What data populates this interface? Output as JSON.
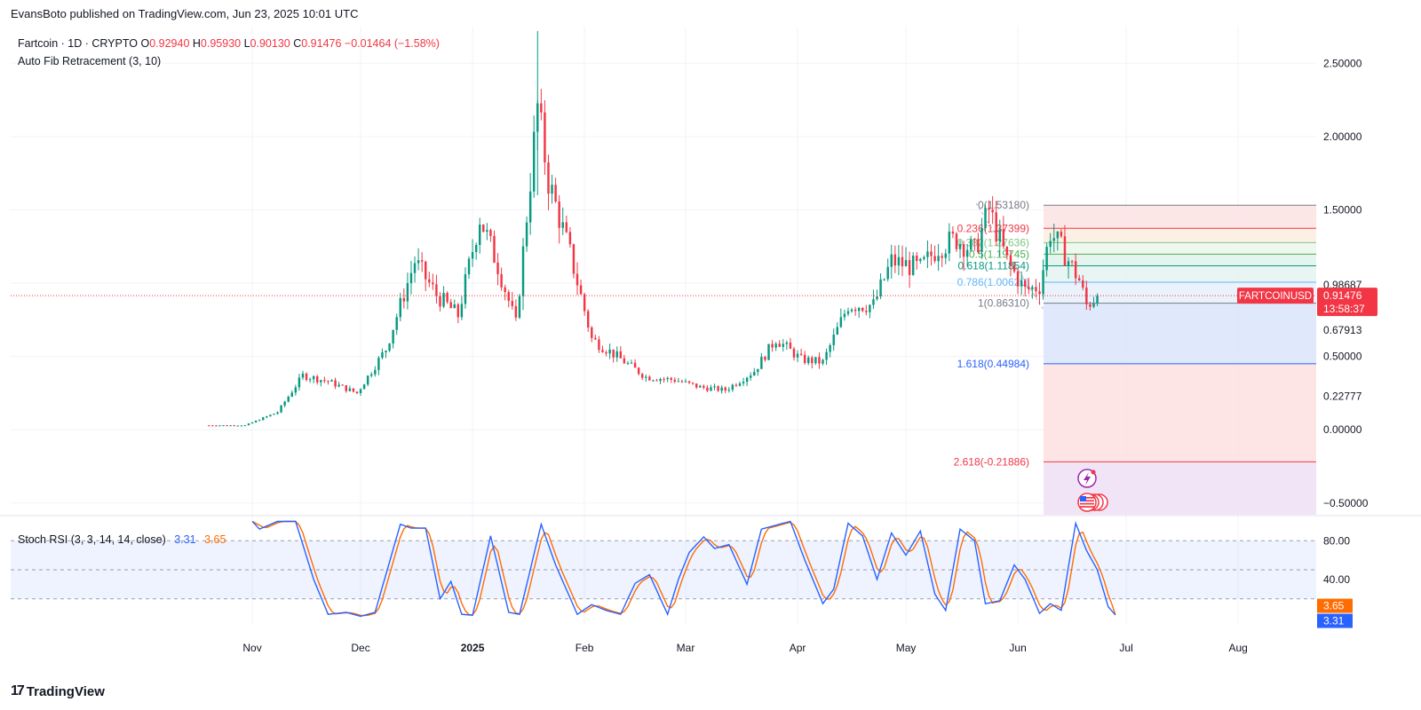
{
  "header": {
    "published": "EvansBoto published on TradingView.com, Jun 23, 2025 10:01 UTC"
  },
  "legend": {
    "symbol": "Fartcoin · 1D · CRYPTO",
    "o_label": "O",
    "o_value": "0.92940",
    "h_label": "H",
    "h_value": "0.95930",
    "l_label": "L",
    "l_value": "0.90130",
    "c_label": "C",
    "c_value": "0.91476",
    "change": "−0.01464 (−1.58%)",
    "indicator": "Auto Fib Retracement (3, 10)"
  },
  "stoch_legend": {
    "title": "Stoch RSI (3, 3, 14, 14, close)",
    "k_value": "3.31",
    "d_value": "3.65"
  },
  "footer": {
    "brand": "TradingView",
    "logo_glyph": "17"
  },
  "colors": {
    "up": "#089981",
    "down": "#f23645",
    "k_line": "#2962ff",
    "d_line": "#ff6d00",
    "price_badge": "#f23645",
    "grid": "#f0f3fa"
  },
  "chart_data": [
    {
      "type": "candlestick",
      "title": "Fartcoin · 1D · CRYPTO",
      "price_axis": {
        "ylim": [
          -0.58,
          2.75
        ],
        "ticks": [
          2.5,
          2.0,
          1.5,
          0.98687,
          0.67913,
          0.5,
          0.22777,
          0.0,
          -0.5
        ],
        "tick_labels": [
          "2.50000",
          "2.00000",
          "1.50000",
          "0.98687",
          "0.67913",
          "0.50000",
          "0.22777",
          "0.00000",
          "−0.50000"
        ]
      },
      "time_axis": {
        "labels": [
          "Nov",
          "Dec",
          "2025",
          "Feb",
          "Mar",
          "Apr",
          "May",
          "Jun",
          "Jul",
          "Aug"
        ],
        "dates": [
          "2024-11-01",
          "2024-12-01",
          "2025-01-01",
          "2025-02-01",
          "2025-03-01",
          "2025-04-01",
          "2025-05-01",
          "2025-06-01",
          "2025-07-01",
          "2025-08-01"
        ]
      },
      "anchors": [
        {
          "date": "2024-10-20",
          "close": 0.03
        },
        {
          "date": "2024-10-30",
          "close": 0.03
        },
        {
          "date": "2024-11-08",
          "close": 0.12
        },
        {
          "date": "2024-11-15",
          "close": 0.37
        },
        {
          "date": "2024-11-22",
          "close": 0.33
        },
        {
          "date": "2024-11-30",
          "close": 0.25
        },
        {
          "date": "2024-12-08",
          "close": 0.55
        },
        {
          "date": "2024-12-16",
          "close": 1.15
        },
        {
          "date": "2024-12-22",
          "close": 0.92
        },
        {
          "date": "2024-12-28",
          "close": 0.78
        },
        {
          "date": "2025-01-03",
          "close": 1.45
        },
        {
          "date": "2025-01-08",
          "close": 1.12
        },
        {
          "date": "2025-01-13",
          "close": 0.72
        },
        {
          "date": "2025-01-19",
          "close": 2.2
        },
        {
          "date": "2025-01-22",
          "close": 1.7
        },
        {
          "date": "2025-01-28",
          "close": 1.2
        },
        {
          "date": "2025-02-03",
          "close": 0.62
        },
        {
          "date": "2025-02-10",
          "close": 0.5
        },
        {
          "date": "2025-02-18",
          "close": 0.36
        },
        {
          "date": "2025-02-26",
          "close": 0.34
        },
        {
          "date": "2025-03-05",
          "close": 0.29
        },
        {
          "date": "2025-03-12",
          "close": 0.27
        },
        {
          "date": "2025-03-20",
          "close": 0.4
        },
        {
          "date": "2025-03-26",
          "close": 0.62
        },
        {
          "date": "2025-04-02",
          "close": 0.48
        },
        {
          "date": "2025-04-08",
          "close": 0.46
        },
        {
          "date": "2025-04-15",
          "close": 0.85
        },
        {
          "date": "2025-04-22",
          "close": 0.85
        },
        {
          "date": "2025-04-27",
          "close": 1.15
        },
        {
          "date": "2025-05-05",
          "close": 1.1
        },
        {
          "date": "2025-05-10",
          "close": 1.25
        },
        {
          "date": "2025-05-15",
          "close": 1.3
        },
        {
          "date": "2025-05-20",
          "close": 1.22
        },
        {
          "date": "2025-05-24",
          "close": 1.5
        },
        {
          "date": "2025-05-29",
          "close": 1.15
        },
        {
          "date": "2025-06-03",
          "close": 0.95
        },
        {
          "date": "2025-06-07",
          "close": 0.98
        },
        {
          "date": "2025-06-10",
          "close": 1.35
        },
        {
          "date": "2025-06-14",
          "close": 1.2
        },
        {
          "date": "2025-06-18",
          "close": 1.02
        },
        {
          "date": "2025-06-20",
          "close": 0.85
        },
        {
          "date": "2025-06-23",
          "close": 0.91476
        }
      ],
      "last_price": {
        "label": "FARTCOINUSD",
        "value": "0.91476",
        "countdown": "13:58:37"
      },
      "fib_levels": [
        {
          "label": "0(1.53180)",
          "value": 1.5318,
          "color": "#787b86"
        },
        {
          "label": "0.236(1.37399)",
          "value": 1.37399,
          "color": "#f23645"
        },
        {
          "label": "0.382(1.27636)",
          "value": 1.27636,
          "color": "#81c784"
        },
        {
          "label": "0.5(1.19745)",
          "value": 1.19745,
          "color": "#4caf50"
        },
        {
          "label": "0.618(1.11854)",
          "value": 1.11854,
          "color": "#089981"
        },
        {
          "label": "0.786(1.00620)",
          "value": 1.0062,
          "color": "#64b5f6"
        },
        {
          "label": "1(0.86310)",
          "value": 0.8631,
          "color": "#787b86"
        },
        {
          "label": "1.618(0.44984)",
          "value": 0.44984,
          "color": "#2962ff"
        },
        {
          "label": "2.618(-0.21886)",
          "value": -0.21886,
          "color": "#f23645"
        }
      ]
    },
    {
      "type": "line",
      "title": "Stoch RSI (3, 3, 14, 14, close)",
      "ylim": [
        -5,
        105
      ],
      "ticks": [
        80,
        40
      ],
      "tick_labels": [
        "80.00",
        "40.00"
      ],
      "bands": [
        80,
        50,
        20
      ],
      "series": [
        {
          "name": "K",
          "color": "#2962ff",
          "last": 3.31
        },
        {
          "name": "D",
          "color": "#ff6d00",
          "last": 3.65
        }
      ],
      "k_anchors": [
        {
          "date": "2024-11-01",
          "value": 100
        },
        {
          "date": "2024-11-03",
          "value": 92
        },
        {
          "date": "2024-11-08",
          "value": 100
        },
        {
          "date": "2024-11-13",
          "value": 100
        },
        {
          "date": "2024-11-18",
          "value": 40
        },
        {
          "date": "2024-11-22",
          "value": 4
        },
        {
          "date": "2024-11-27",
          "value": 6
        },
        {
          "date": "2024-12-01",
          "value": 2
        },
        {
          "date": "2024-12-05",
          "value": 6
        },
        {
          "date": "2024-12-12",
          "value": 97
        },
        {
          "date": "2024-12-15",
          "value": 93
        },
        {
          "date": "2024-12-19",
          "value": 93
        },
        {
          "date": "2024-12-23",
          "value": 20
        },
        {
          "date": "2024-12-26",
          "value": 38
        },
        {
          "date": "2024-12-29",
          "value": 4
        },
        {
          "date": "2025-01-01",
          "value": 3
        },
        {
          "date": "2025-01-06",
          "value": 85
        },
        {
          "date": "2025-01-11",
          "value": 6
        },
        {
          "date": "2025-01-14",
          "value": 4
        },
        {
          "date": "2025-01-20",
          "value": 97
        },
        {
          "date": "2025-01-24",
          "value": 55
        },
        {
          "date": "2025-01-30",
          "value": 4
        },
        {
          "date": "2025-02-03",
          "value": 14
        },
        {
          "date": "2025-02-07",
          "value": 8
        },
        {
          "date": "2025-02-11",
          "value": 4
        },
        {
          "date": "2025-02-15",
          "value": 36
        },
        {
          "date": "2025-02-19",
          "value": 45
        },
        {
          "date": "2025-02-24",
          "value": 4
        },
        {
          "date": "2025-02-27",
          "value": 40
        },
        {
          "date": "2025-03-02",
          "value": 68
        },
        {
          "date": "2025-03-06",
          "value": 84
        },
        {
          "date": "2025-03-09",
          "value": 72
        },
        {
          "date": "2025-03-13",
          "value": 76
        },
        {
          "date": "2025-03-18",
          "value": 35
        },
        {
          "date": "2025-03-22",
          "value": 92
        },
        {
          "date": "2025-03-26",
          "value": 96
        },
        {
          "date": "2025-03-30",
          "value": 100
        },
        {
          "date": "2025-04-03",
          "value": 60
        },
        {
          "date": "2025-04-08",
          "value": 15
        },
        {
          "date": "2025-04-11",
          "value": 30
        },
        {
          "date": "2025-04-15",
          "value": 98
        },
        {
          "date": "2025-04-19",
          "value": 85
        },
        {
          "date": "2025-04-23",
          "value": 40
        },
        {
          "date": "2025-04-27",
          "value": 88
        },
        {
          "date": "2025-05-01",
          "value": 65
        },
        {
          "date": "2025-05-05",
          "value": 90
        },
        {
          "date": "2025-05-09",
          "value": 25
        },
        {
          "date": "2025-05-12",
          "value": 8
        },
        {
          "date": "2025-05-16",
          "value": 92
        },
        {
          "date": "2025-05-20",
          "value": 80
        },
        {
          "date": "2025-05-23",
          "value": 15
        },
        {
          "date": "2025-05-27",
          "value": 18
        },
        {
          "date": "2025-05-31",
          "value": 55
        },
        {
          "date": "2025-06-03",
          "value": 40
        },
        {
          "date": "2025-06-07",
          "value": 5
        },
        {
          "date": "2025-06-10",
          "value": 15
        },
        {
          "date": "2025-06-13",
          "value": 8
        },
        {
          "date": "2025-06-17",
          "value": 98
        },
        {
          "date": "2025-06-20",
          "value": 70
        },
        {
          "date": "2025-06-23",
          "value": 50
        },
        {
          "date": "2025-06-26",
          "value": 12
        },
        {
          "date": "2025-06-28",
          "value": 3.31
        }
      ]
    }
  ]
}
